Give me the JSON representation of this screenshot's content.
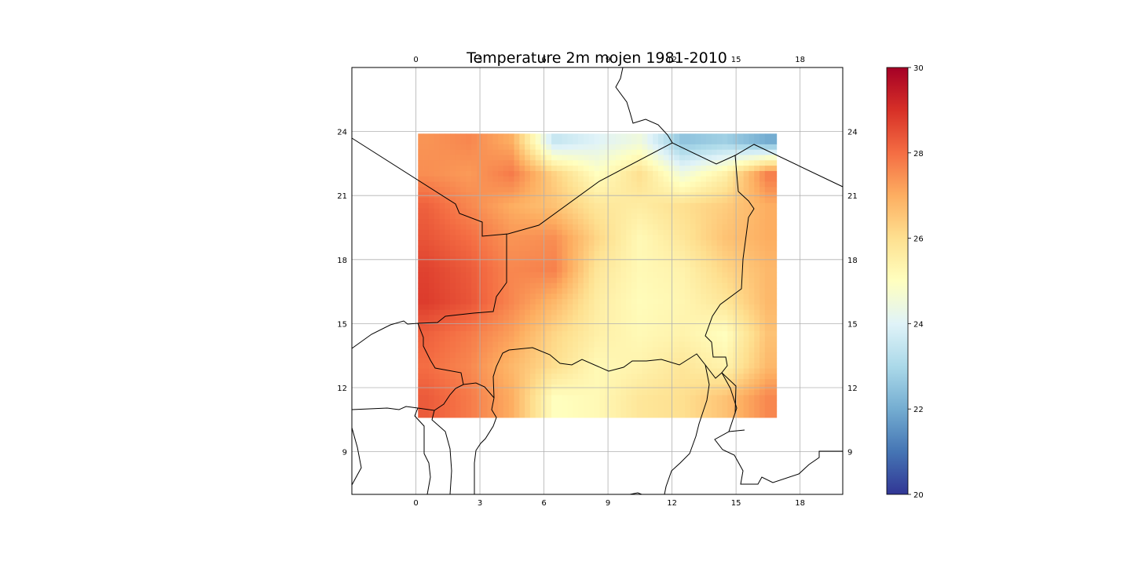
{
  "chart_data": {
    "type": "heatmap",
    "title": "Temperature 2m mojen 1981-2010",
    "xlabel": "",
    "ylabel": "",
    "map_extent": {
      "lon": [
        -3,
        20
      ],
      "lat": [
        7,
        27
      ]
    },
    "data_extent": {
      "lon": [
        0.1,
        16.9
      ],
      "lat": [
        10.6,
        23.9
      ]
    },
    "lon_ticks": [
      0,
      3,
      6,
      9,
      12,
      15,
      18
    ],
    "lat_ticks": [
      9,
      12,
      15,
      18,
      21,
      24
    ],
    "grid": true,
    "colorbar": {
      "cmap": "RdYlBu_r",
      "range": [
        20,
        30
      ],
      "ticks": [
        20,
        22,
        24,
        26,
        28,
        30
      ],
      "colors": [
        "#313695",
        "#4575b4",
        "#74add1",
        "#abd9e9",
        "#e0f3f8",
        "#ffffbf",
        "#fee090",
        "#fdae61",
        "#f46d43",
        "#d73027",
        "#a50026"
      ]
    },
    "temperature_field": {
      "lons": [
        0.5,
        2.5,
        4.5,
        6.5,
        8.5,
        10.5,
        12.5,
        14.5,
        16.5
      ],
      "lats": [
        23.5,
        22.0,
        20.5,
        19.0,
        17.5,
        16.0,
        14.5,
        13.0,
        11.5,
        11.0
      ],
      "values": [
        [
          27.4,
          27.6,
          27.0,
          23.5,
          24.0,
          24.5,
          22.5,
          22.8,
          22.0
        ],
        [
          27.5,
          27.3,
          27.8,
          26.3,
          25.0,
          26.0,
          24.5,
          25.5,
          27.8
        ],
        [
          28.2,
          27.6,
          27.0,
          26.6,
          25.8,
          25.6,
          26.0,
          26.4,
          27.0
        ],
        [
          28.4,
          28.0,
          27.4,
          27.5,
          26.2,
          25.2,
          25.8,
          26.6,
          27.0
        ],
        [
          28.7,
          28.3,
          27.6,
          27.7,
          25.8,
          25.2,
          25.4,
          26.2,
          26.8
        ],
        [
          28.8,
          28.4,
          27.6,
          26.8,
          25.6,
          25.1,
          25.3,
          25.8,
          26.8
        ],
        [
          28.2,
          27.8,
          27.2,
          26.2,
          25.5,
          25.2,
          25.4,
          25.0,
          26.6
        ],
        [
          28.0,
          27.6,
          26.8,
          26.0,
          25.2,
          25.4,
          25.8,
          25.4,
          26.8
        ],
        [
          28.3,
          27.8,
          27.0,
          25.0,
          25.2,
          25.8,
          26.0,
          26.6,
          27.6
        ],
        [
          28.3,
          27.8,
          27.0,
          25.0,
          25.2,
          25.8,
          26.0,
          26.6,
          27.6
        ]
      ]
    }
  }
}
